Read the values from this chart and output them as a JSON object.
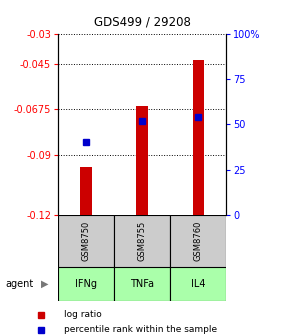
{
  "title": "GDS499 / 29208",
  "categories": [
    "IFNg",
    "TNFa",
    "IL4"
  ],
  "gsm_labels": [
    "GSM8750",
    "GSM8755",
    "GSM8760"
  ],
  "bar_values": [
    -0.096,
    -0.066,
    -0.043
  ],
  "percentile_values": [
    40,
    52,
    54
  ],
  "bar_color": "#cc0000",
  "percentile_color": "#0000cc",
  "ylim_left": [
    -0.12,
    -0.03
  ],
  "yticks_left": [
    -0.12,
    -0.09,
    -0.0675,
    -0.045,
    -0.03
  ],
  "ytick_labels_left": [
    "-0.12",
    "-0.09",
    "-0.0675",
    "-0.045",
    "-0.03"
  ],
  "ylim_right": [
    0,
    100
  ],
  "yticks_right": [
    0,
    25,
    50,
    75,
    100
  ],
  "ytick_labels_right": [
    "0",
    "25",
    "50",
    "75",
    "100%"
  ],
  "gsm_bg_color": "#cccccc",
  "agent_bg_color": "#aaffaa",
  "agent_label": "agent",
  "legend_items": [
    "log ratio",
    "percentile rank within the sample"
  ]
}
